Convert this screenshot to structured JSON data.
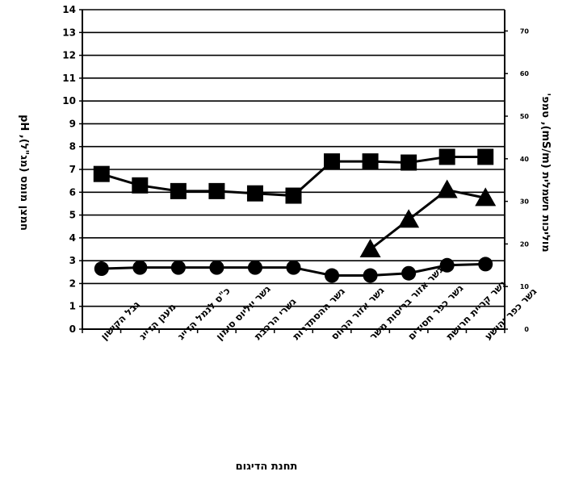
{
  "chart_data": {
    "type": "line",
    "title": "",
    "xlabel": "תחנת הדיגום",
    "ylabel_left": "חמצן מומס (מג\"ל), pH",
    "ylabel_right": "מוליכות חשמלית (mS/m), טמפ'",
    "categories": [
      "גבל הקישון",
      "מעגן הדייג",
      "כ\"ס לנמל הדייג",
      "גשר יוליוס סימון",
      "גשרי הרכבת",
      "גשר ההסתדרות",
      "גשר אזור הרווס",
      "גשר אזור בריסות משר",
      "גשר כפר חסידים",
      "גשר קריית חרושת",
      "גשר כפר יהושע"
    ],
    "y_left_ticks": [
      0,
      1,
      2,
      3,
      4,
      5,
      6,
      7,
      8,
      9,
      10,
      11,
      12,
      13,
      14
    ],
    "ylim_left": [
      0,
      14
    ],
    "y_right_ticks": [
      0,
      10,
      20,
      30,
      40,
      50,
      60,
      70
    ],
    "ylim_right": [
      0,
      75
    ],
    "grid": "horizontal",
    "series": [
      {
        "marker": "square",
        "axis": "left",
        "values": [
          6.8,
          6.3,
          6.05,
          6.05,
          5.95,
          5.85,
          7.35,
          7.35,
          7.3,
          7.55,
          7.55
        ]
      },
      {
        "marker": "triangle",
        "axis": "left",
        "values": [
          null,
          null,
          null,
          null,
          null,
          null,
          null,
          3.5,
          4.8,
          6.1,
          5.75
        ]
      },
      {
        "marker": "circle",
        "axis": "left",
        "values": [
          2.65,
          2.7,
          2.7,
          2.7,
          2.7,
          2.7,
          2.35,
          2.35,
          2.45,
          2.8,
          2.85
        ]
      }
    ],
    "colors": {
      "ink": "#000000",
      "background": "#ffffff"
    }
  }
}
